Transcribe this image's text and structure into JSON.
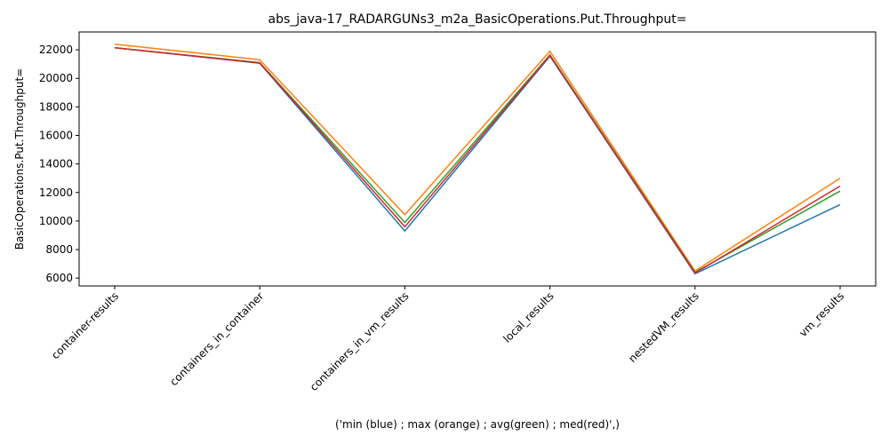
{
  "chart_data": {
    "type": "line",
    "title": "abs_java-17_RADARGUNs3_m2a_BasicOperations.Put.Throughput=",
    "xlabel": "('min (blue) ; max (orange) ; avg(green) ; med(red)',)",
    "ylabel": "BasicOperations.Put.Throughput=",
    "categories": [
      "container-results",
      "containers_in_container",
      "containers_in_vm_results",
      "local_results",
      "nestedVM_results",
      "vm_results"
    ],
    "ylim": [
      5450,
      23250
    ],
    "yticks": [
      6000,
      8000,
      10000,
      12000,
      14000,
      16000,
      18000,
      20000,
      22000
    ],
    "grid": false,
    "series": [
      {
        "color": "#1f77b4",
        "values": [
          22150,
          21050,
          9300,
          21550,
          6300,
          11150
        ]
      },
      {
        "color": "#ff7f0e",
        "values": [
          22400,
          21300,
          10450,
          21900,
          6500,
          13000
        ]
      },
      {
        "color": "#2ca02c",
        "values": [
          22150,
          21100,
          9900,
          21650,
          6400,
          12100
        ]
      },
      {
        "color": "#d62728",
        "values": [
          22150,
          21080,
          9600,
          21600,
          6350,
          12450
        ]
      }
    ]
  }
}
